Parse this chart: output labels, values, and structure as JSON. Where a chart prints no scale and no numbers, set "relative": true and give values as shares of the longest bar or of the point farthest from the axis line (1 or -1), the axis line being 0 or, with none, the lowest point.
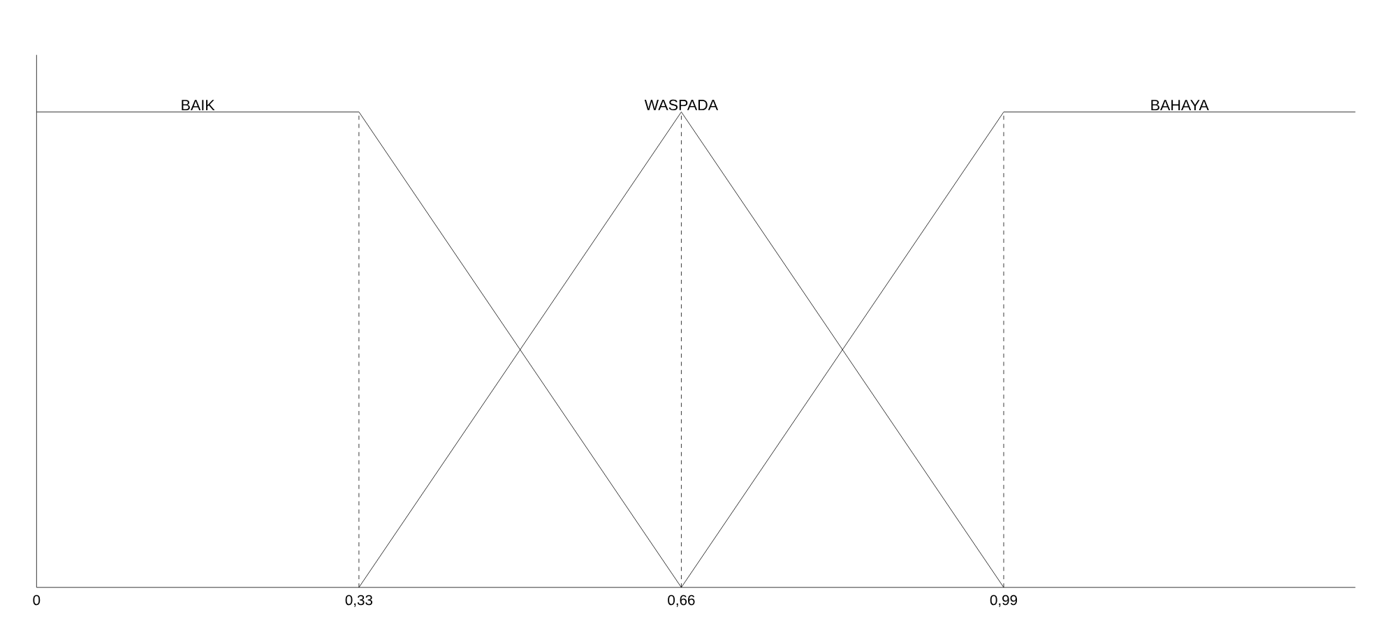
{
  "chart_data": {
    "type": "line",
    "relative": true,
    "series": [
      {
        "name": "BAIK",
        "color": "#000000",
        "x": [
          0,
          0.33,
          0.66
        ],
        "values": [
          1,
          1,
          0
        ]
      },
      {
        "name": "WASPADA",
        "color": "#000000",
        "x": [
          0.33,
          0.66,
          0.99
        ],
        "values": [
          0,
          1,
          0
        ]
      },
      {
        "name": "BAHAYA",
        "color": "#000000",
        "x": [
          0.66,
          0.99,
          1.35
        ],
        "values": [
          0,
          1,
          1
        ]
      }
    ],
    "xlim": [
      0,
      1.35
    ],
    "xticks": [
      0,
      {
        "value": 0.33,
        "label": "0,33"
      },
      {
        "value": 0.66,
        "label": "0,66"
      },
      {
        "value": 0.99,
        "label": "0,99"
      }
    ],
    "ref_lines": [
      {
        "axis": "x",
        "value": 0.33,
        "color": "#000000",
        "line_style": "dashed"
      },
      {
        "axis": "x",
        "value": 0.66,
        "color": "#000000",
        "line_style": "dashed"
      },
      {
        "axis": "x",
        "value": 0.99,
        "color": "#000000",
        "line_style": "dashed"
      }
    ],
    "legend": false,
    "grid": false,
    "marker": "none",
    "line_style": "solid"
  }
}
